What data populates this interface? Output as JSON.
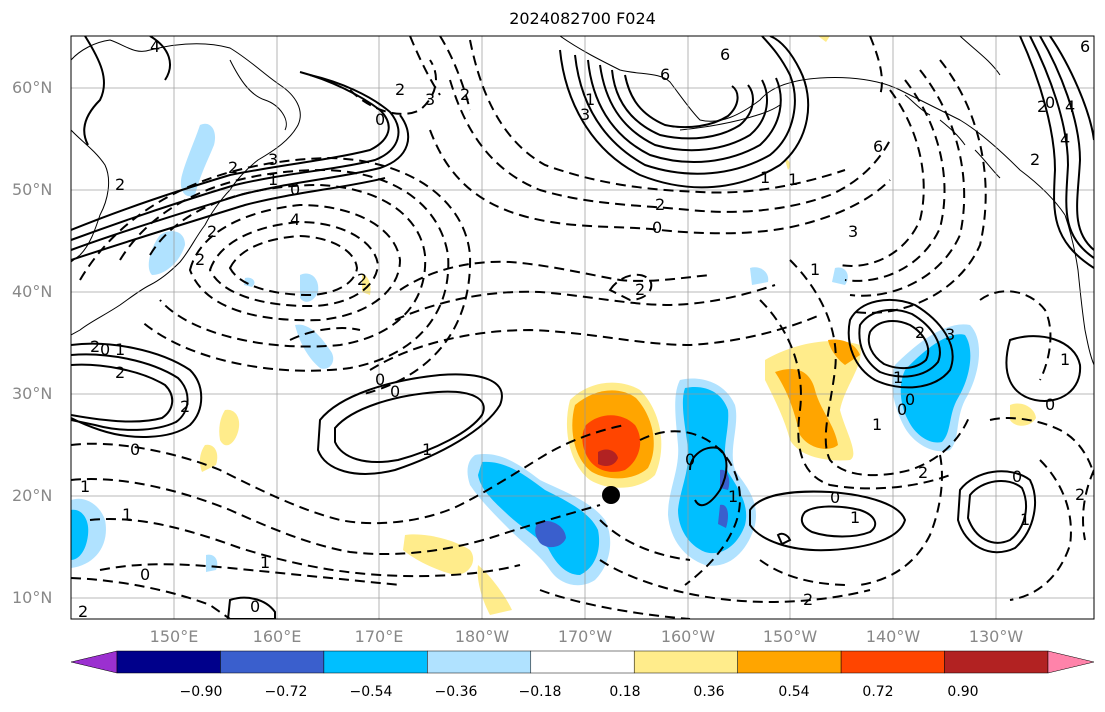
{
  "title": "2024082700 F024",
  "lat_labels": [
    "60°N",
    "50°N",
    "40°N",
    "30°N",
    "20°N",
    "10°N"
  ],
  "lon_labels": [
    "150°E",
    "160°E",
    "170°E",
    "180°W",
    "170°W",
    "160°W",
    "150°W",
    "140°W",
    "130°W"
  ],
  "colorbar": {
    "labels": [
      "−0.90",
      "−0.72",
      "−0.54",
      "−0.36",
      "−0.18",
      "0.18",
      "0.36",
      "0.54",
      "0.72",
      "0.90"
    ],
    "colors": [
      "#9b30d0",
      "#00008b",
      "#3a5fcd",
      "#00bfff",
      "#b0e2ff",
      "#ffffff",
      "#ffec8b",
      "#ffa500",
      "#ff4500",
      "#b22222",
      "#ff83aa"
    ]
  },
  "contour_labels": [
    "4",
    "6",
    "6",
    "6",
    "3",
    "2",
    "2",
    "3",
    "1",
    "0",
    "0",
    "2",
    "2",
    "3",
    "1",
    "0",
    "0",
    "4",
    "2",
    "2",
    "1",
    "2",
    "0",
    "0",
    "1",
    "1",
    "2",
    "2",
    "3",
    "4",
    "2",
    "1",
    "1",
    "0",
    "1",
    "0",
    "0",
    "0",
    "2",
    "0",
    "1",
    "1",
    "0",
    "1",
    "2",
    "3",
    "2",
    "6",
    "4",
    "2",
    "2",
    "1",
    "0",
    "1",
    "2",
    "1",
    "0",
    "0",
    "1",
    "2",
    "2",
    "2",
    "1",
    "0"
  ],
  "marker": {
    "lat": 20,
    "lon": "167°W"
  }
}
